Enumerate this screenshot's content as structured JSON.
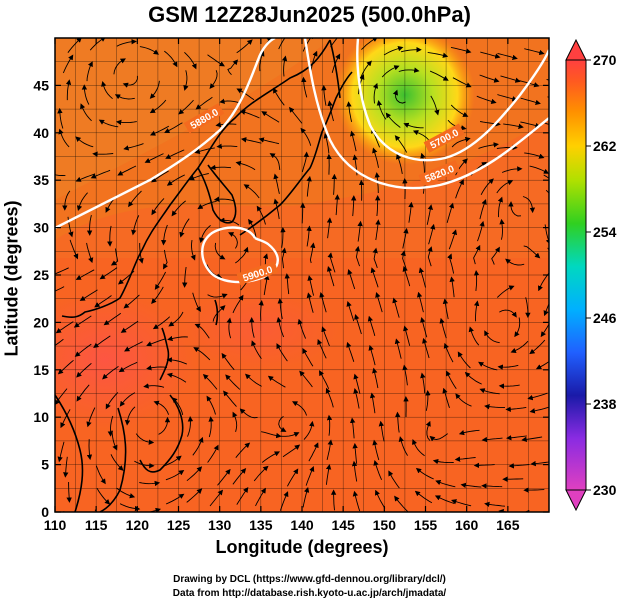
{
  "title": "GSM 12Z28Jun2025 (500.0hPa)",
  "x_axis": {
    "label": "Longitude (degrees)",
    "range": [
      110,
      170
    ],
    "ticks": [
      110,
      115,
      120,
      125,
      130,
      135,
      140,
      145,
      150,
      155,
      160,
      165
    ]
  },
  "y_axis": {
    "label": "Latitude (degrees)",
    "range": [
      0,
      50
    ],
    "ticks": [
      0,
      5,
      10,
      15,
      20,
      25,
      30,
      35,
      40,
      45
    ]
  },
  "colorbar": {
    "min": 230,
    "max": 270,
    "tick_labels": [
      "270",
      "262",
      "254",
      "246",
      "238",
      "230"
    ],
    "tick_values": [
      270,
      262,
      254,
      246,
      238,
      230
    ]
  },
  "contours": [
    {
      "label": "5880.0",
      "color": "#ffffff"
    },
    {
      "label": "5700.0",
      "color": "#ffffff"
    },
    {
      "label": "5820.0",
      "color": "#ffffff"
    },
    {
      "label": "5900.0",
      "color": "#ffffff"
    }
  ],
  "credits": {
    "line1": "Drawing by DCL (https://www.gfd-dennou.org/library/dcl/)",
    "line2": "Data from http://database.rish.kyoto-u.ac.jp/arch/jmadata/"
  }
}
